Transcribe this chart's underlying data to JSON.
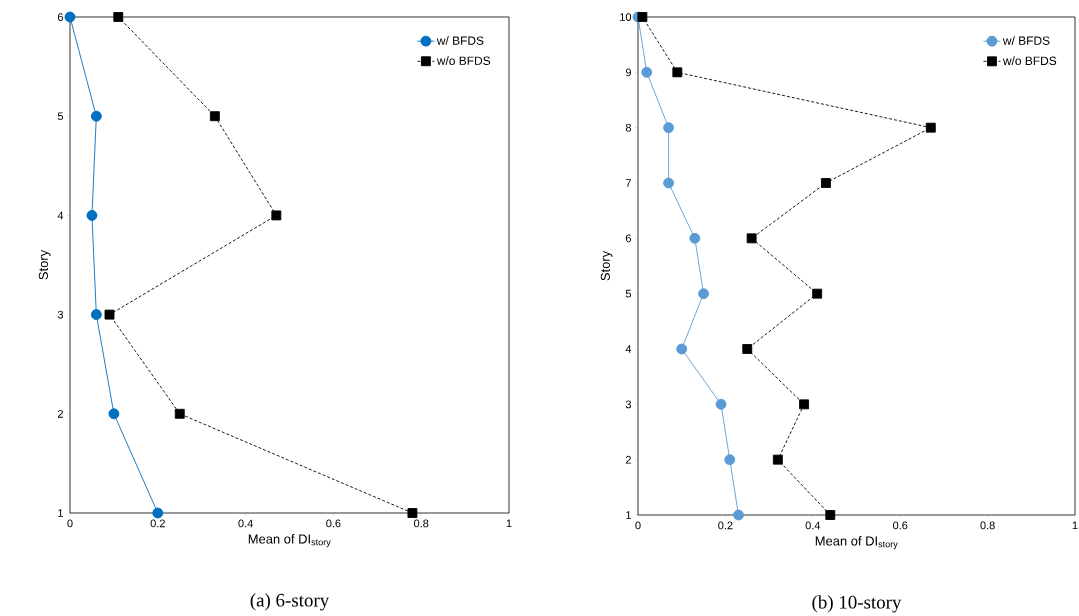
{
  "chart_data": [
    {
      "type": "line",
      "xlabel": "Mean of DI$_{story}$",
      "ylabel": "Story",
      "annotations": [
        "(a)  6-story"
      ],
      "xlim": [
        0,
        1
      ],
      "xticks": [
        0,
        0.2,
        0.4,
        0.6,
        0.8,
        1
      ],
      "ylim": [
        1,
        6
      ],
      "yticks": [
        1,
        2,
        3,
        4,
        5,
        6
      ],
      "legend": "top right",
      "series": [
        {
          "name": "w/ BFDS",
          "color": "#0070c0",
          "marker": "circle",
          "line_style": "solid",
          "x": [
            0.2,
            0.1,
            0.06,
            0.05,
            0.06,
            0.0
          ],
          "values": [
            1,
            2,
            3,
            4,
            5,
            6
          ]
        },
        {
          "name": "w/o BFDS",
          "color": "#000000",
          "marker": "square",
          "line_style": "dashed",
          "x": [
            0.78,
            0.25,
            0.09,
            0.47,
            0.33,
            0.11
          ],
          "values": [
            1,
            2,
            3,
            4,
            5,
            6
          ]
        }
      ]
    },
    {
      "type": "line",
      "xlabel": "Mean of DI$_{story}$",
      "ylabel": "Story",
      "annotations": [
        "(b)  10-story"
      ],
      "xlim": [
        0,
        1
      ],
      "xticks": [
        0,
        0.2,
        0.4,
        0.6,
        0.8,
        1
      ],
      "ylim": [
        1,
        10
      ],
      "yticks": [
        1,
        2,
        3,
        4,
        5,
        6,
        7,
        8,
        9,
        10
      ],
      "legend": "top right",
      "series": [
        {
          "name": "w/ BFDS",
          "color": "#5b9bd5",
          "marker": "circle",
          "line_style": "solid",
          "x": [
            0.23,
            0.21,
            0.19,
            0.1,
            0.15,
            0.13,
            0.07,
            0.07,
            0.02,
            0.0
          ],
          "values": [
            1,
            2,
            3,
            4,
            5,
            6,
            7,
            8,
            9,
            10
          ]
        },
        {
          "name": "w/o BFDS",
          "color": "#000000",
          "marker": "square",
          "line_style": "dashed",
          "x": [
            0.44,
            0.32,
            0.38,
            0.25,
            0.41,
            0.26,
            0.43,
            0.67,
            0.09,
            0.01
          ],
          "values": [
            1,
            2,
            3,
            4,
            5,
            6,
            7,
            8,
            9,
            10
          ]
        }
      ]
    }
  ]
}
